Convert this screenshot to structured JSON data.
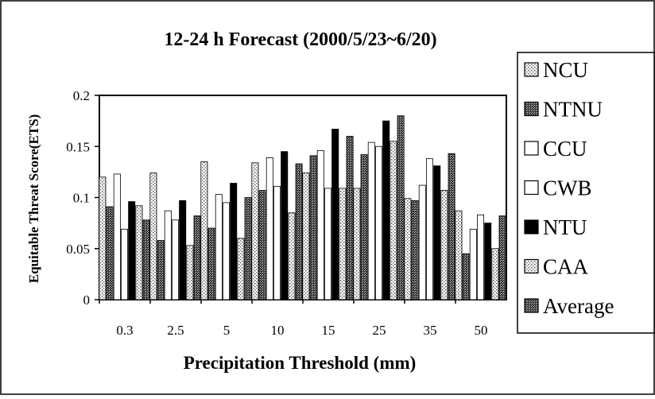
{
  "chart_data": {
    "type": "bar",
    "title": "12-24 h Forecast (2000/5/23~6/20)",
    "xlabel": "Precipitation Threshold (mm)",
    "ylabel": "Equitable Threat Score(ETS)",
    "ylim": [
      0,
      0.2
    ],
    "yticks": [
      "0",
      "0.05",
      "0.1",
      "0.15",
      "0.2"
    ],
    "categories": [
      "0.3",
      "2.5",
      "5",
      "10",
      "15",
      "25",
      "35",
      "50"
    ],
    "legend_position": "right",
    "grid": false,
    "series": [
      {
        "name": "NCU",
        "pattern": "dots",
        "values": [
          0.12,
          0.124,
          0.135,
          0.134,
          0.124,
          0.109,
          0.099,
          0.087
        ]
      },
      {
        "name": "NTNU",
        "pattern": "dense",
        "values": [
          0.091,
          0.058,
          0.07,
          0.107,
          0.141,
          0.142,
          0.097,
          0.045
        ]
      },
      {
        "name": "CCU",
        "pattern": "plain",
        "values": [
          0.123,
          0.087,
          0.103,
          0.139,
          0.146,
          0.154,
          0.112,
          0.069
        ]
      },
      {
        "name": "CWB",
        "pattern": "plain",
        "values": [
          0.069,
          0.078,
          0.095,
          0.111,
          0.109,
          0.15,
          0.138,
          0.083
        ]
      },
      {
        "name": "NTU",
        "pattern": "solid",
        "values": [
          0.096,
          0.097,
          0.114,
          0.145,
          0.167,
          0.175,
          0.131,
          0.075
        ]
      },
      {
        "name": "CAA",
        "pattern": "dots",
        "values": [
          0.092,
          0.053,
          0.06,
          0.085,
          0.109,
          0.155,
          0.107,
          0.05
        ]
      },
      {
        "name": "Average",
        "pattern": "dense",
        "values": [
          0.078,
          0.082,
          0.1,
          0.133,
          0.16,
          0.18,
          0.143,
          0.082
        ]
      }
    ]
  }
}
